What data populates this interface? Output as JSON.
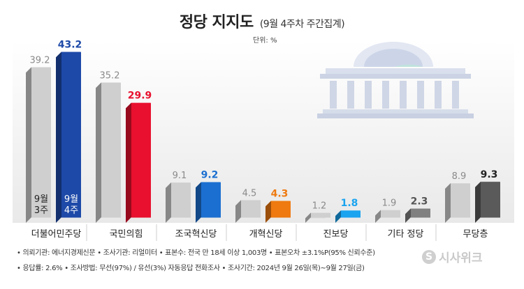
{
  "title": "정당 지지도",
  "subtitle": "(9월 4주차 주간집계)",
  "unit_label": "단위: %",
  "chart_data": {
    "type": "bar",
    "categories": [
      "더불어민주당",
      "국민의힘",
      "조국혁신당",
      "개혁신당",
      "진보당",
      "기타 정당",
      "무당층"
    ],
    "series": [
      {
        "name": "9월 3주",
        "values": [
          39.2,
          35.2,
          9.1,
          4.5,
          1.2,
          1.9,
          8.9
        ],
        "color": "#cfcfcf"
      },
      {
        "name": "9월 4주",
        "values": [
          43.2,
          29.9,
          9.2,
          4.3,
          1.8,
          2.3,
          9.3
        ],
        "colors": [
          "#1d49a8",
          "#e8102e",
          "#1b6fd0",
          "#ee7a10",
          "#1aa3ef",
          "#808080",
          "#5a5a5a"
        ],
        "label_colors": [
          "#1d49a8",
          "#e8102e",
          "#1b6fd0",
          "#ee7a10",
          "#1aa3ef",
          "#555555",
          "#222222"
        ]
      }
    ],
    "legend_inside_bars": {
      "prev": [
        "9월",
        "3주"
      ],
      "curr": [
        "9월",
        "4주"
      ]
    }
  },
  "footer": {
    "line1": "• 의뢰기관: 에너지경제신문 • 조사기관: 리얼미터 • 표본수: 전국 만 18세 이상 1,003명 • 표본오차 ±3.1%P(95% 신뢰수준)",
    "line2": "• 응답률: 2.6% • 조사방법: 무선(97%) / 유선(3%) 자동응답 전화조사 • 조사기간: 2024년 9월 26일(목)~9월 27일(금)"
  },
  "logo_text": "시사위크",
  "logo_mark": "S"
}
